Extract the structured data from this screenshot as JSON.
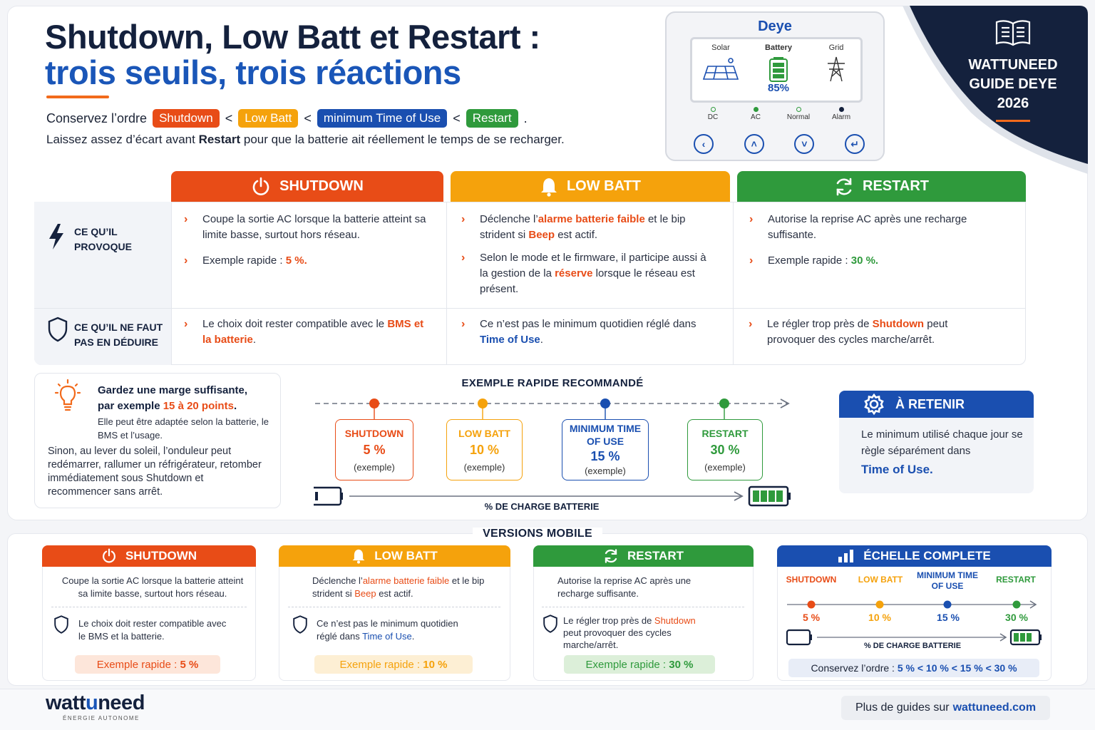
{
  "header": {
    "title_line1": "Shutdown, Low Batt et Restart :",
    "title_line2": "trois seuils, trois réactions",
    "order_prefix": "Conservez l’ordre",
    "order_pills": [
      "Shutdown",
      "Low Batt",
      "minimum Time of Use",
      "Restart"
    ],
    "order_sep": "<",
    "order_end": ".",
    "subline_pre": "Laissez assez d’écart avant ",
    "subline_bold": "Restart",
    "subline_post": " pour que la batterie ait réellement le temps de se recharger."
  },
  "device": {
    "brand": "Deye",
    "screen": {
      "solar": "Solar",
      "battery": "Battery",
      "grid": "Grid",
      "battery_pct": "85%"
    },
    "leds": [
      {
        "label": "DC",
        "color": "#2f9a3c",
        "filled": false
      },
      {
        "label": "AC",
        "color": "#2f9a3c",
        "filled": true
      },
      {
        "label": "Normal",
        "color": "#2f9a3c",
        "filled": false
      },
      {
        "label": "Alarm",
        "color": "#14213d",
        "filled": true
      }
    ],
    "buttons": [
      "back-icon",
      "up-icon",
      "down-icon",
      "enter-icon"
    ]
  },
  "banner": {
    "line1": "WATTUNEED",
    "line2": "GUIDE DEYE",
    "line3": "2026"
  },
  "table": {
    "columns": [
      {
        "title": "SHUTDOWN",
        "color": "#e84c17",
        "icon": "power-icon"
      },
      {
        "title": "LOW BATT",
        "color": "#f5a20c",
        "icon": "bell-icon"
      },
      {
        "title": "RESTART",
        "color": "#2f9a3c",
        "icon": "refresh-icon"
      }
    ],
    "row1_label": [
      "CE QU’IL",
      "PROVOQUE"
    ],
    "row2_label": [
      "CE QU’IL NE FAUT",
      "PAS EN DÉDUIRE"
    ],
    "shutdown": {
      "r1b1": "Coupe la sortie AC lorsque la batterie atteint sa limite basse, surtout hors réseau.",
      "r1b2_pre": "Exemple rapide : ",
      "r1b2_val": "5 %.",
      "r2_pre": "Le choix doit rester compatible avec le ",
      "r2_hl": "BMS et la batterie",
      "r2_post": "."
    },
    "lowbatt": {
      "r1b1_a": "Déclenche l’",
      "r1b1_hl1": "alarme batterie faible",
      "r1b1_b": " et le bip strident si ",
      "r1b1_hl2": "Beep",
      "r1b1_c": " est actif.",
      "r1b2_a": "Selon le mode et le firmware, il participe aussi à la gestion de la ",
      "r1b2_hl": "réserve",
      "r1b2_b": " lorsque le réseau est présent.",
      "r2_pre": "Ce n’est pas le minimum quotidien réglé dans ",
      "r2_hl": "Time of Use",
      "r2_post": "."
    },
    "restart": {
      "r1b1": "Autorise la reprise AC après une recharge suffisante.",
      "r1b2_pre": "Exemple rapide : ",
      "r1b2_val": "30 %.",
      "r2_pre": "Le régler trop près de ",
      "r2_hl": "Shutdown",
      "r2_post": " peut provoquer des cycles marche/arrêt."
    }
  },
  "tip": {
    "title_a": "Gardez une marge suffisante,",
    "title_b": "par exemple ",
    "title_hl": "15 à 20 points",
    "title_c": ".",
    "note": "Elle peut être adaptée selon la batterie, le BMS et l’usage.",
    "body": "Sinon, au lever du soleil, l’onduleur peut redémarrer, rallumer un réfrigérateur, retomber immédiatement sous Shutdown et recommencer sans arrêt."
  },
  "example": {
    "title": "EXEMPLE RAPIDE RECOMMANDÉ",
    "axis_label": "% DE CHARGE BATTERIE",
    "steps": [
      {
        "name": "SHUTDOWN",
        "value": "5 %",
        "note": "(exemple)",
        "color": "#e84c17"
      },
      {
        "name": "LOW BATT",
        "value": "10 %",
        "note": "(exemple)",
        "color": "#f5a20c"
      },
      {
        "name": "MINIMUM TIME OF USE",
        "value": "15 %",
        "note": "(exemple)",
        "color": "#1a4fb0"
      },
      {
        "name": "RESTART",
        "value": "30 %",
        "note": "(exemple)",
        "color": "#2f9a3c"
      }
    ]
  },
  "retain": {
    "title": "À RETENIR",
    "body": "Le minimum utilisé chaque jour se règle séparément dans",
    "hl": "Time of Use."
  },
  "mobile": {
    "title": "VERSIONS MOBILE",
    "shutdown": {
      "title": "SHUTDOWN",
      "text": "Coupe la sortie AC lorsque la batterie atteint sa limite basse, surtout hors réseau.",
      "warn": "Le choix doit rester compatible avec le BMS et la batterie.",
      "pill_pre": "Exemple rapide : ",
      "pill_val": "5 %"
    },
    "lowbatt": {
      "title": "LOW BATT",
      "text_a": "Déclenche l’",
      "text_hl1": "alarme batterie faible",
      "text_b": " et le bip strident si ",
      "text_hl2": "Beep",
      "text_c": " est actif.",
      "warn_a": "Ce n’est pas le minimum quotidien réglé dans ",
      "warn_hl": "Time of Use",
      "warn_b": ".",
      "pill_pre": "Exemple rapide : ",
      "pill_val": "10 %"
    },
    "restart": {
      "title": "RESTART",
      "text": "Autorise la reprise AC après une recharge suffisante.",
      "warn_a": "Le régler trop près de ",
      "warn_hl": "Shutdown",
      "warn_b": " peut provoquer des cycles marche/arrêt.",
      "pill_pre": "Exemple rapide : ",
      "pill_val": "30 %"
    },
    "scale": {
      "title": "ÉCHELLE COMPLETE",
      "labels": [
        "SHUTDOWN",
        "LOW BATT",
        "MINIMUM TIME OF USE",
        "RESTART"
      ],
      "values": [
        "5 %",
        "10 %",
        "15 %",
        "30 %"
      ],
      "axis_label": "% DE CHARGE BATTERIE",
      "order_pre": "Conservez l’ordre : ",
      "order_val": "5 % < 10 % < 15 % < 30 %"
    }
  },
  "footer": {
    "logo_a": "watt",
    "logo_b": "u",
    "logo_c": "need",
    "logo_sub": "ÉNERGIE AUTONOME",
    "more_pre": "Plus de guides sur",
    "more_link": "wattuneed.com"
  }
}
